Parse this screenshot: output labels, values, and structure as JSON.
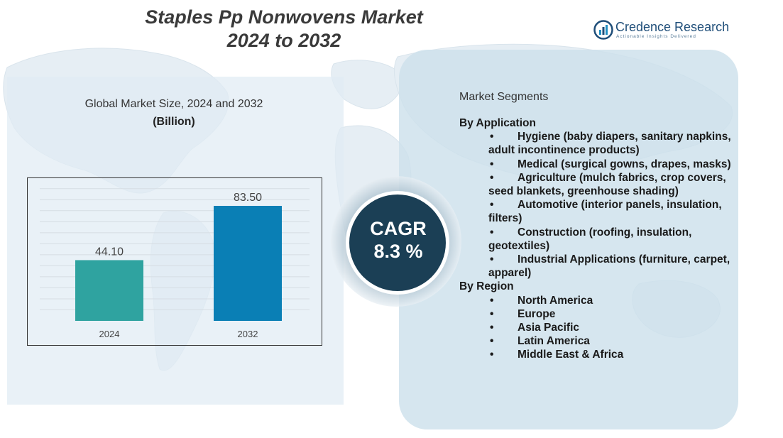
{
  "title": {
    "line1": "Staples Pp Nonwovens Market",
    "line2": "2024 to 2032"
  },
  "logo": {
    "name": "Credence Research",
    "tagline": "Actionable Insights Delivered"
  },
  "chart_data": {
    "type": "bar",
    "title": "Global Market Size, 2024 and 2032",
    "unit_label": "(Billion)",
    "categories": [
      "2024",
      "2032"
    ],
    "values": [
      44.1,
      83.5
    ],
    "value_labels": [
      "44.10",
      "83.50"
    ],
    "ylim": [
      0,
      100
    ],
    "grid": true,
    "colors": [
      "#2fa3a0",
      "#0a7fb5"
    ]
  },
  "cagr": {
    "label": "CAGR",
    "value": "8.3 %"
  },
  "segments": {
    "title": "Market Segments",
    "groups": [
      {
        "name": "By Application",
        "items": [
          "Hygiene (baby diapers, sanitary napkins, adult incontinence products)",
          "Medical (surgical gowns, drapes, masks)",
          "Agriculture (mulch fabrics, crop covers, seed blankets, greenhouse shading)",
          "Automotive (interior panels, insulation, filters)",
          "Construction (roofing, insulation, geotextiles)",
          "Industrial Applications (furniture, carpet, apparel)"
        ]
      },
      {
        "name": "By Region",
        "items": [
          "North America",
          "Europe",
          "Asia Pacific",
          "Latin America",
          "Middle East & Africa"
        ]
      }
    ]
  },
  "colors": {
    "title": "#3a3a3a",
    "cagr_circle": "#1b3f55",
    "panel_right": "#cde0eb",
    "panel_left": "#e1ecf4"
  }
}
